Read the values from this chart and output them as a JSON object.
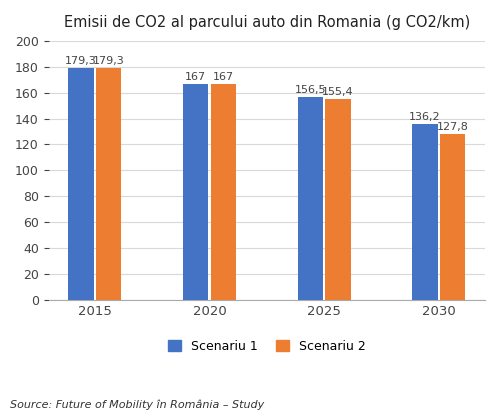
{
  "title": "Emisii de CO2 al parcului auto din Romania (g CO2/km)",
  "categories": [
    "2015",
    "2020",
    "2025",
    "2030"
  ],
  "scenario1": [
    179.3,
    167,
    156.5,
    136.2
  ],
  "scenario2": [
    179.3,
    167,
    155.4,
    127.8
  ],
  "scenario1_labels": [
    "179,3",
    "167",
    "156,5",
    "136,2"
  ],
  "scenario2_labels": [
    "179,3",
    "167",
    "155,4",
    "127,8"
  ],
  "color1": "#4472C4",
  "color2": "#ED7D31",
  "legend1": "Scenariu 1",
  "legend2": "Scenariu 2",
  "ylim": [
    0,
    200
  ],
  "yticks": [
    0,
    20,
    40,
    60,
    80,
    100,
    120,
    140,
    160,
    180,
    200
  ],
  "source": "Source: Future of Mobility în România – Study",
  "background_color": "#ffffff",
  "bar_width": 0.22
}
